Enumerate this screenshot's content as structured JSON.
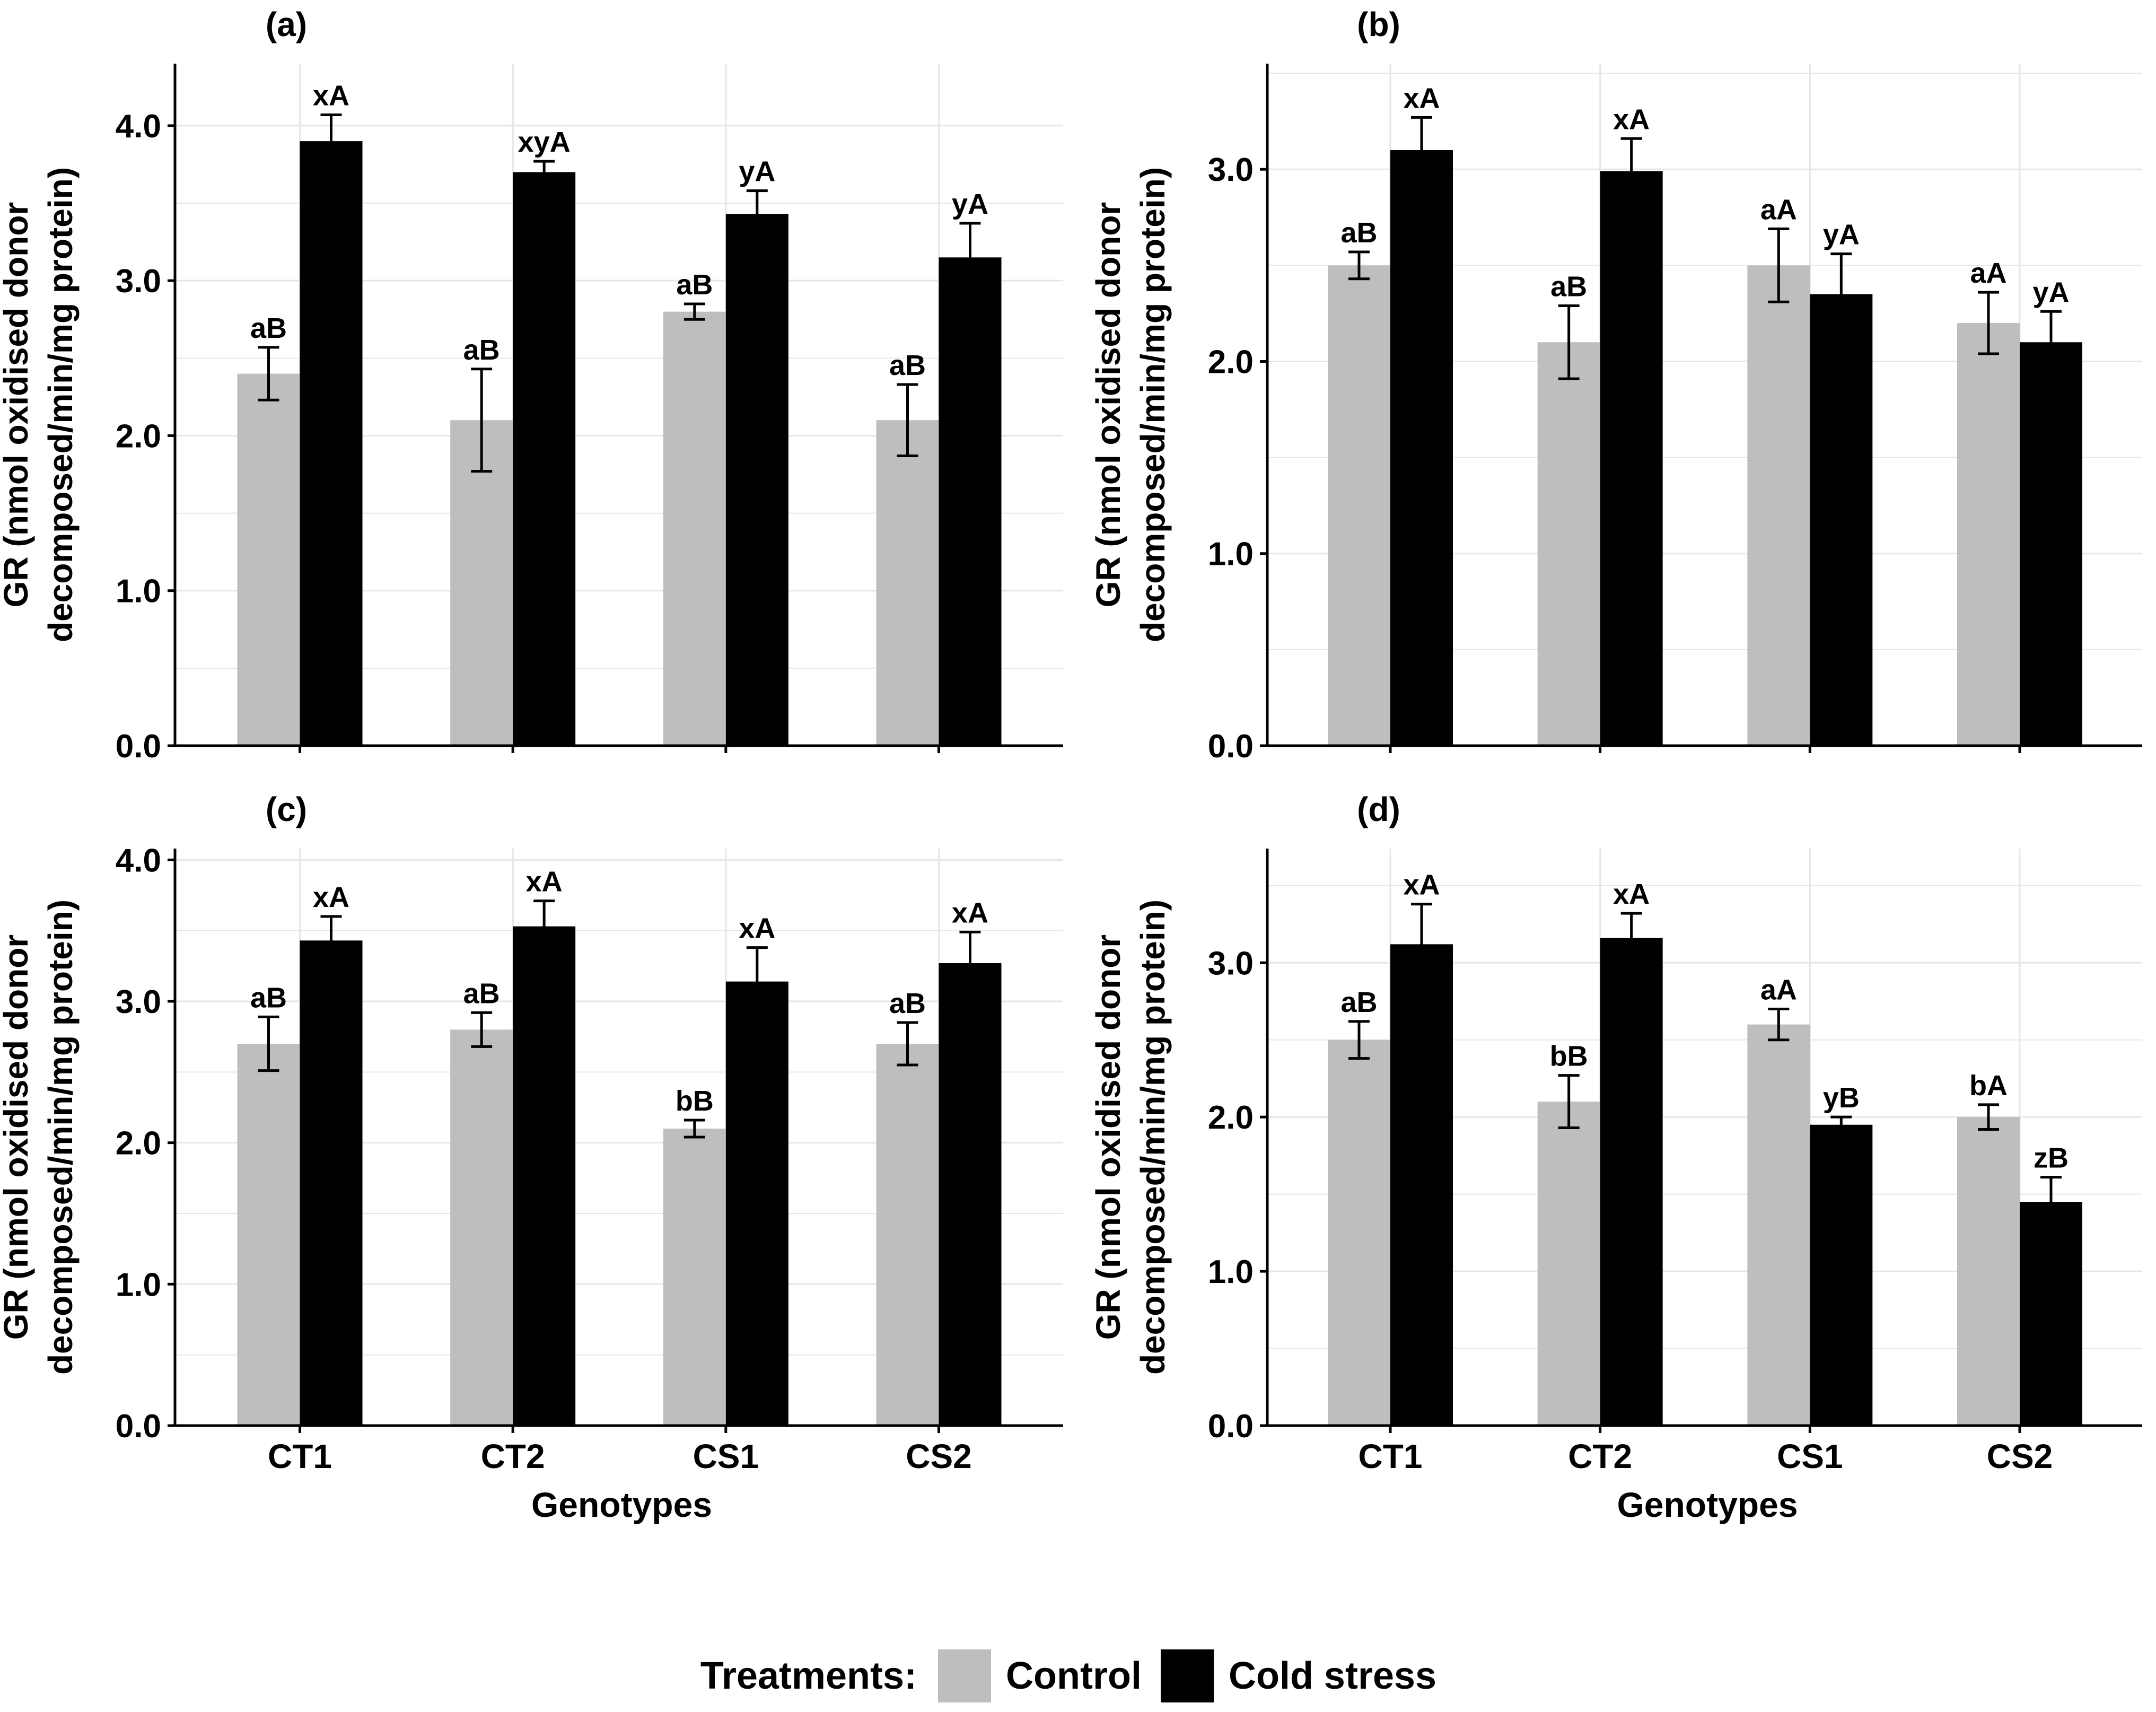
{
  "colors": {
    "control": "#BEBEBE",
    "cold": "#000000",
    "grid": "#E6E6E6",
    "axis": "#000000"
  },
  "legend": {
    "title": "Treatments:",
    "items": [
      "Control",
      "Cold stress"
    ]
  },
  "chart_data": [
    {
      "type": "bar",
      "title": "(a)",
      "xlabel": "",
      "ylabel_lines": [
        "GR (nmol oxidised donor",
        "decomposed/min/mg protein)"
      ],
      "categories": [
        "CT1",
        "CT2",
        "CS1",
        "CS2"
      ],
      "ylim": [
        0,
        4.4
      ],
      "yticks": [
        0,
        1,
        2,
        3,
        4
      ],
      "yticklabels": [
        "0.0",
        "1.0",
        "2.0",
        "3.0",
        "4.0"
      ],
      "show_xticklabels": false,
      "series": [
        {
          "name": "Control",
          "values": [
            2.4,
            2.1,
            2.8,
            2.1
          ],
          "errors": [
            0.17,
            0.33,
            0.05,
            0.23
          ],
          "labels": [
            "aB",
            "aB",
            "aB",
            "aB"
          ]
        },
        {
          "name": "Cold stress",
          "values": [
            3.9,
            3.7,
            3.43,
            3.15
          ],
          "errors": [
            0.17,
            0.07,
            0.15,
            0.22
          ],
          "labels": [
            "xA",
            "xyA",
            "yA",
            "yA"
          ]
        }
      ]
    },
    {
      "type": "bar",
      "title": "(b)",
      "xlabel": "",
      "ylabel_lines": [
        "GR (nmol oxidised donor",
        "decomposed/min/mg protein)"
      ],
      "categories": [
        "CT1",
        "CT2",
        "CS1",
        "CS2"
      ],
      "ylim": [
        0,
        3.55
      ],
      "yticks": [
        0,
        1,
        2,
        3
      ],
      "yticklabels": [
        "0.0",
        "1.0",
        "2.0",
        "3.0"
      ],
      "show_xticklabels": false,
      "series": [
        {
          "name": "Control",
          "values": [
            2.5,
            2.1,
            2.5,
            2.2
          ],
          "errors": [
            0.07,
            0.19,
            0.19,
            0.16
          ],
          "labels": [
            "aB",
            "aB",
            "aA",
            "aA"
          ]
        },
        {
          "name": "Cold stress",
          "values": [
            3.1,
            2.99,
            2.35,
            2.1
          ],
          "errors": [
            0.17,
            0.17,
            0.21,
            0.16
          ],
          "labels": [
            "xA",
            "xA",
            "yA",
            "yA"
          ]
        }
      ]
    },
    {
      "type": "bar",
      "title": "(c)",
      "xlabel": "Genotypes",
      "ylabel_lines": [
        "GR (nmol oxidised donor",
        "decomposed/min/mg protein)"
      ],
      "categories": [
        "CT1",
        "CT2",
        "CS1",
        "CS2"
      ],
      "ylim": [
        0,
        4.08
      ],
      "yticks": [
        0,
        1,
        2,
        3,
        4
      ],
      "yticklabels": [
        "0.0",
        "1.0",
        "2.0",
        "3.0",
        "4.0"
      ],
      "show_xticklabels": true,
      "series": [
        {
          "name": "Control",
          "values": [
            2.7,
            2.8,
            2.1,
            2.7
          ],
          "errors": [
            0.19,
            0.12,
            0.06,
            0.15
          ],
          "labels": [
            "aB",
            "aB",
            "bB",
            "aB"
          ]
        },
        {
          "name": "Cold stress",
          "values": [
            3.43,
            3.53,
            3.14,
            3.27
          ],
          "errors": [
            0.17,
            0.18,
            0.24,
            0.22
          ],
          "labels": [
            "xA",
            "xA",
            "xA",
            "xA"
          ]
        }
      ]
    },
    {
      "type": "bar",
      "title": "(d)",
      "xlabel": "Genotypes",
      "ylabel_lines": [
        "GR (nmol oxidised donor",
        "decomposed/min/mg protein)"
      ],
      "categories": [
        "CT1",
        "CT2",
        "CS1",
        "CS2"
      ],
      "ylim": [
        0,
        3.74
      ],
      "yticks": [
        0,
        1,
        2,
        3
      ],
      "yticklabels": [
        "0.0",
        "1.0",
        "2.0",
        "3.0"
      ],
      "show_xticklabels": true,
      "series": [
        {
          "name": "Control",
          "values": [
            2.5,
            2.1,
            2.6,
            2.0
          ],
          "errors": [
            0.12,
            0.17,
            0.1,
            0.08
          ],
          "labels": [
            "aB",
            "bB",
            "aA",
            "bA"
          ]
        },
        {
          "name": "Cold stress",
          "values": [
            3.12,
            3.16,
            1.95,
            1.45
          ],
          "errors": [
            0.26,
            0.16,
            0.05,
            0.16
          ],
          "labels": [
            "xA",
            "xA",
            "yB",
            "zB"
          ]
        }
      ]
    }
  ]
}
